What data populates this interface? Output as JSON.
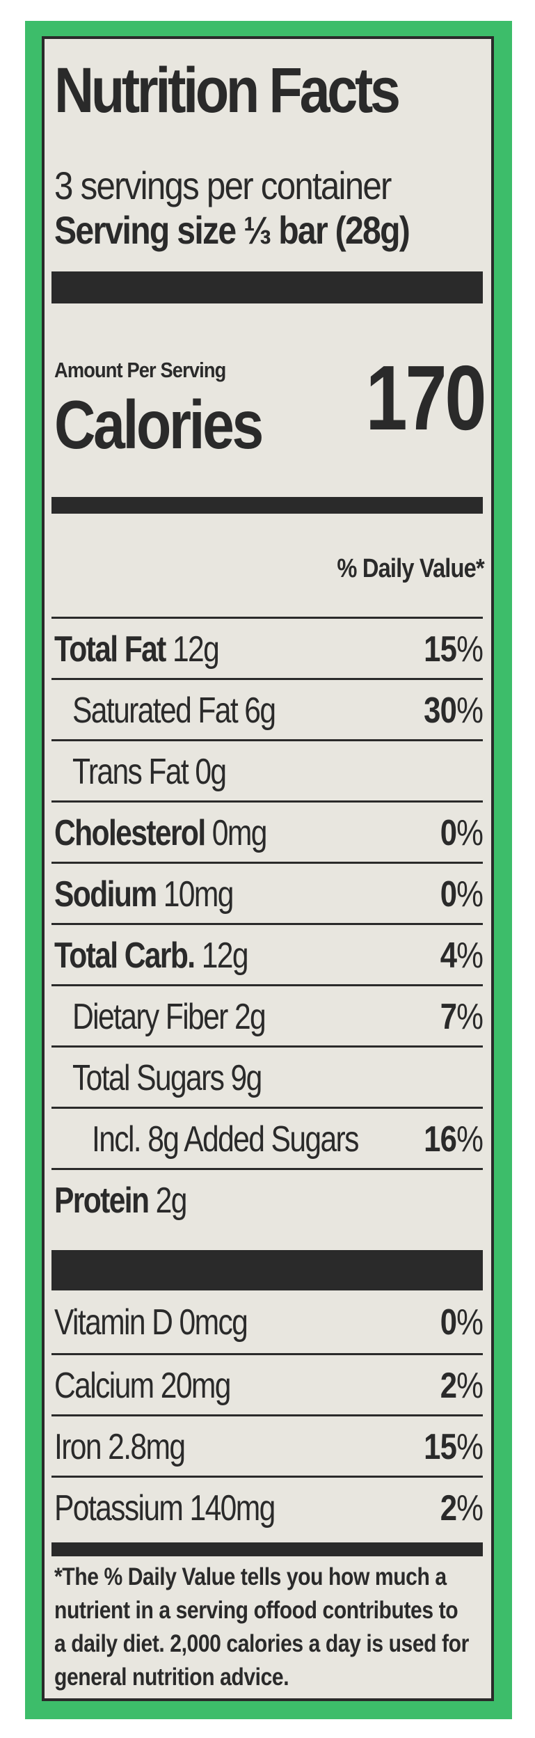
{
  "colors": {
    "background_green": "#3dbd6a",
    "label_bg": "#e8e6df",
    "ink": "#2a2a2a"
  },
  "title": "Nutrition Facts",
  "servings_per_container": "3 servings per container",
  "serving_size_label": "Serving size",
  "serving_size_value": "⅓ bar (28g)",
  "amount_per_serving": "Amount Per Serving",
  "calories_label": "Calories",
  "calories_value": "170",
  "daily_value_header": "% Daily Value*",
  "nutrients": [
    {
      "name": "Total Fat",
      "amount": "12g",
      "dv_num": "15",
      "dv_sign": "%"
    },
    {
      "name": "Saturated Fat",
      "amount": "6g",
      "dv_num": "30",
      "dv_sign": "%"
    },
    {
      "name": "Trans Fat",
      "amount": "0g"
    },
    {
      "name": "Cholesterol",
      "amount": "0mg",
      "dv_num": "0",
      "dv_sign": "%"
    },
    {
      "name": "Sodium",
      "amount": "10mg",
      "dv_num": "0",
      "dv_sign": "%"
    },
    {
      "name": "Total Carb.",
      "amount": "12g",
      "dv_num": "4",
      "dv_sign": "%"
    },
    {
      "name": "Dietary Fiber",
      "amount": "2g",
      "dv_num": "7",
      "dv_sign": "%"
    },
    {
      "name": "Total Sugars",
      "amount": "9g"
    },
    {
      "name": "Incl. 8g Added Sugars",
      "dv_num": "16",
      "dv_sign": "%"
    },
    {
      "name": "Protein",
      "amount": "2g"
    }
  ],
  "vitamins": [
    {
      "name": "Vitamin D",
      "amount": "0mcg",
      "dv_num": "0",
      "dv_sign": "%"
    },
    {
      "name": "Calcium",
      "amount": "20mg",
      "dv_num": "2",
      "dv_sign": "%"
    },
    {
      "name": "Iron",
      "amount": "2.8mg",
      "dv_num": "15",
      "dv_sign": "%"
    },
    {
      "name": "Potassium",
      "amount": "140mg",
      "dv_num": "2",
      "dv_sign": "%"
    }
  ],
  "footnote": "*The % Daily Value tells you how much a nutrient in a serving offood contributes to a daily diet. 2,000 calories a day is used for general nutrition advice."
}
